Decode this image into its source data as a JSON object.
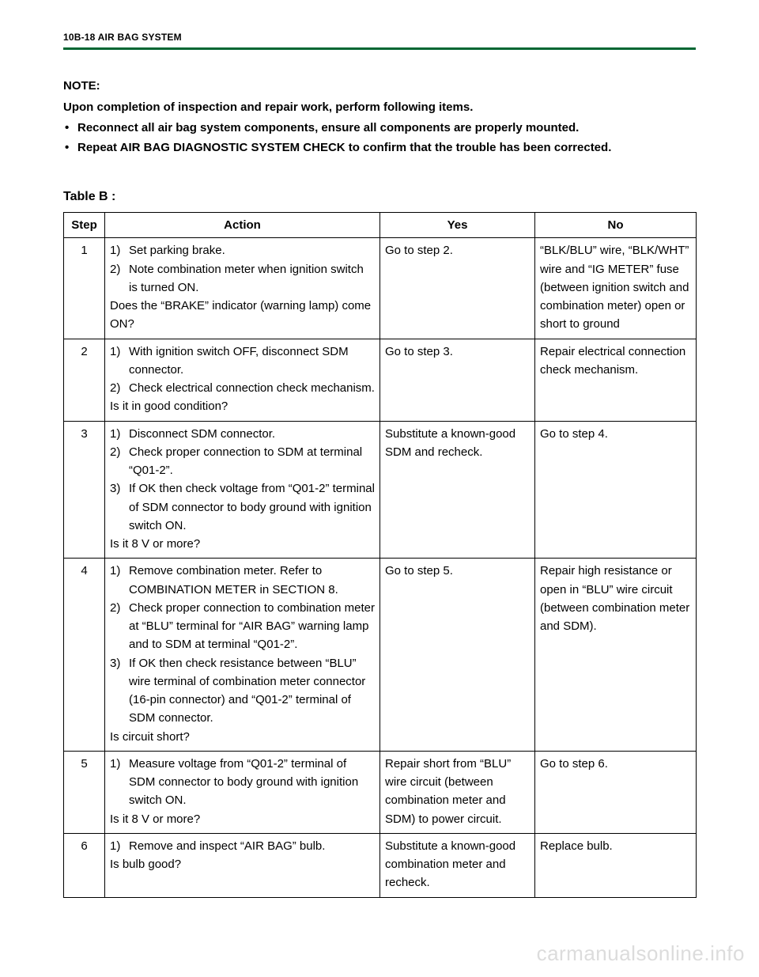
{
  "header": {
    "page_id": "10B-18 AIR BAG SYSTEM"
  },
  "rule_color": "#006633",
  "note": {
    "label": "NOTE:",
    "lead": "Upon completion of inspection and repair work, perform following items.",
    "bullets": [
      "Reconnect all air bag system components, ensure all components are properly mounted.",
      "Repeat AIR BAG DIAGNOSTIC SYSTEM CHECK to confirm that the trouble has been corrected."
    ]
  },
  "table": {
    "title": "Table B :",
    "headers": {
      "step": "Step",
      "action": "Action",
      "yes": "Yes",
      "no": "No"
    },
    "rows": [
      {
        "step": "1",
        "actions": [
          "Set parking brake.",
          "Note combination meter when ignition switch is turned ON."
        ],
        "question": "Does the “BRAKE” indicator (warning lamp) come ON?",
        "yes": "Go to step 2.",
        "no": "“BLK/BLU” wire, “BLK/WHT” wire and “IG METER” fuse (between ignition switch and combination meter) open or short to ground"
      },
      {
        "step": "2",
        "actions": [
          "With ignition switch OFF, disconnect SDM connector.",
          "Check electrical connection check mechanism."
        ],
        "question": "Is it in good condition?",
        "yes": "Go to step 3.",
        "no": "Repair electrical connection check mechanism."
      },
      {
        "step": "3",
        "actions": [
          "Disconnect SDM connector.",
          "Check proper connection to SDM at terminal “Q01-2”.",
          "If OK then check voltage from “Q01-2” terminal of SDM connector to body ground with ignition switch ON."
        ],
        "question": "Is it 8 V or more?",
        "yes": "Substitute a known-good SDM and recheck.",
        "no": "Go to step 4."
      },
      {
        "step": "4",
        "actions": [
          "Remove combination meter. Refer to COMBINATION METER in SECTION 8.",
          "Check proper connection to combination meter at “BLU” terminal for “AIR BAG” warning lamp and to SDM at terminal “Q01-2”.",
          "If OK then check resistance between “BLU” wire terminal of combination meter connector (16-pin connector) and “Q01-2” terminal of SDM connector."
        ],
        "question": "Is circuit short?",
        "yes": "Go to step 5.",
        "no": "Repair high resistance or open in “BLU” wire circuit (between combination meter and SDM)."
      },
      {
        "step": "5",
        "actions": [
          "Measure voltage from “Q01-2” terminal of SDM connector to body ground with ignition switch ON."
        ],
        "question": "Is it 8 V or more?",
        "yes": "Repair short from “BLU” wire circuit (between combination meter and SDM) to power circuit.",
        "no": "Go to step 6."
      },
      {
        "step": "6",
        "actions": [
          "Remove and inspect “AIR BAG” bulb."
        ],
        "question": "Is bulb good?",
        "yes": "Substitute a known-good combination meter and recheck.",
        "no": "Replace bulb."
      }
    ]
  },
  "watermark": "carmanualsonline.info"
}
